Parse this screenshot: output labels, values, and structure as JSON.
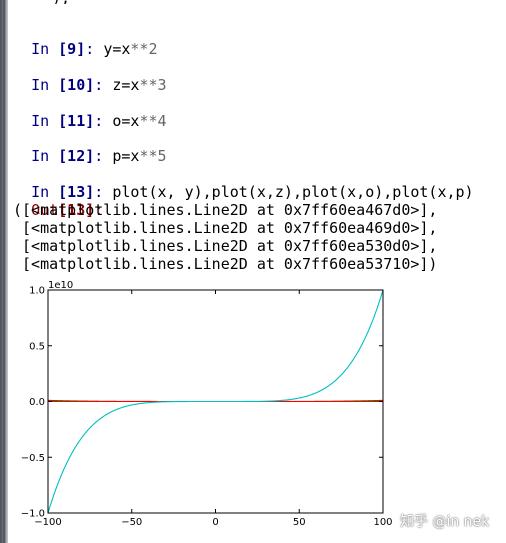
{
  "cells": [
    {
      "prompt": "In ",
      "num": "[9]",
      "colon": ":",
      "code": "y=x",
      "op": "**2"
    },
    {
      "prompt": "In ",
      "num": "[10]",
      "colon": ":",
      "code": "z=x",
      "op": "**3"
    },
    {
      "prompt": "In ",
      "num": "[11]",
      "colon": ":",
      "code": "o=x",
      "op": "**4"
    },
    {
      "prompt": "In ",
      "num": "[12]",
      "colon": ":",
      "code": "p=x",
      "op": "**5"
    },
    {
      "prompt": "In ",
      "num": "[13]",
      "colon": ":",
      "code": "plot(x, y),plot(x,z),plot(x,o),plot(x,p)",
      "op": ""
    }
  ],
  "output": {
    "prompt": "Out",
    "num": "[13]",
    "colon": ":",
    "lines": [
      "([<matplotlib.lines.Line2D at 0x7ff60ea467d0>],",
      " [<matplotlib.lines.Line2D at 0x7ff60ea469d0>],",
      " [<matplotlib.lines.Line2D at 0x7ff60ea530d0>],",
      " [<matplotlib.lines.Line2D at 0x7ff60ea53710>])"
    ]
  },
  "top_fragment": "),",
  "watermark": "知乎 @in nek",
  "chart_data": {
    "type": "line",
    "x_range": [
      -100,
      100
    ],
    "ylim": [
      -1.0,
      1.0
    ],
    "y_offset_label": "1e10",
    "xticks": [
      -100,
      -50,
      0,
      50,
      100
    ],
    "xtick_labels": [
      "−100",
      "−50",
      "0",
      "50",
      "100"
    ],
    "yticks": [
      -1.0,
      -0.5,
      0.0,
      0.5,
      1.0
    ],
    "ytick_labels": [
      "−1.0",
      "−0.5",
      "0.0",
      "0.5",
      "1.0"
    ],
    "series": [
      {
        "exponent": 2,
        "color": "#0000ff"
      },
      {
        "exponent": 3,
        "color": "#008000"
      },
      {
        "exponent": 4,
        "color": "#ff0000"
      },
      {
        "exponent": 5,
        "color": "#00bfbf"
      }
    ]
  }
}
